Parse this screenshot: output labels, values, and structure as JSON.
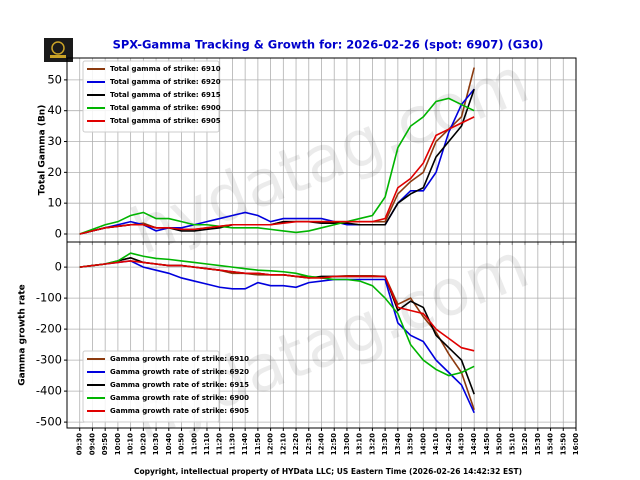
{
  "title": "SPX-Gamma Tracking & Growth for: 2026-02-26 (spot: 6907) (G30)",
  "footer": "Copyright, intellectual property of HYData LLC; US Eastern Time (2026-02-26 14:42:32 EST)",
  "watermark": "hydatag.com",
  "shared_x": {
    "x": [
      "09:30",
      "09:40",
      "09:50",
      "10:00",
      "10:10",
      "10:20",
      "10:30",
      "10:40",
      "10:50",
      "11:00",
      "11:10",
      "11:20",
      "11:30",
      "11:40",
      "11:50",
      "12:00",
      "12:10",
      "12:20",
      "12:30",
      "12:40",
      "12:50",
      "13:00",
      "13:10",
      "13:20",
      "13:30",
      "13:40",
      "13:50",
      "14:00",
      "14:10",
      "14:20",
      "14:30",
      "14:40"
    ],
    "xlim": [
      "09:20",
      "16:00"
    ],
    "xticks": [
      "09:30",
      "09:40",
      "09:50",
      "10:00",
      "10:10",
      "10:20",
      "10:30",
      "10:40",
      "10:50",
      "11:00",
      "11:10",
      "11:20",
      "11:30",
      "11:40",
      "11:50",
      "12:00",
      "12:10",
      "12:20",
      "12:30",
      "12:40",
      "12:50",
      "13:00",
      "13:10",
      "13:20",
      "13:30",
      "13:40",
      "13:50",
      "14:00",
      "14:10",
      "14:20",
      "14:30",
      "14:40",
      "14:50",
      "15:00",
      "15:10",
      "15:20",
      "15:30",
      "15:40",
      "15:50",
      "16:00"
    ]
  },
  "chart_data": [
    {
      "type": "line",
      "y_label": "Total Gamma (Bn)",
      "ylim": [
        -2.6,
        57.1
      ],
      "yticks": [
        0,
        10,
        20,
        30,
        40,
        50
      ],
      "grid": true,
      "legend": "upper left",
      "series": [
        {
          "name": "Total gamma of strike: 6910",
          "color": "#8b3a0f",
          "values": [
            0,
            1,
            2,
            2.5,
            3,
            3.5,
            2,
            2,
            1.5,
            1.5,
            2,
            2.5,
            3,
            3,
            3,
            3,
            4,
            4,
            4,
            4,
            4,
            4,
            4,
            4,
            4,
            13,
            17,
            20,
            30,
            34,
            38,
            54
          ]
        },
        {
          "name": "Total gamma of strike: 6920",
          "color": "#0000dd",
          "values": [
            0,
            1,
            2,
            3,
            4,
            3,
            1,
            2,
            2,
            3,
            4,
            5,
            6,
            7,
            6,
            4,
            5,
            5,
            5,
            5,
            4,
            3,
            3,
            3,
            3,
            10,
            14,
            14,
            20,
            33,
            42,
            47
          ]
        },
        {
          "name": "Total gamma of strike: 6915",
          "color": "#000000",
          "values": [
            0,
            1,
            2,
            2.5,
            3,
            3,
            2,
            2,
            1,
            1,
            1.5,
            2,
            3,
            3,
            3,
            3,
            4,
            4,
            4,
            3.5,
            3.5,
            3.5,
            3,
            3,
            3,
            10,
            13,
            15,
            25,
            30,
            35,
            47
          ]
        },
        {
          "name": "Total gamma of strike: 6900",
          "color": "#00b400",
          "values": [
            0,
            1.5,
            3,
            4,
            6,
            7,
            5,
            5,
            4,
            3,
            3,
            2.5,
            2,
            2,
            2,
            1.5,
            1,
            0.5,
            1,
            2,
            3,
            4,
            5,
            6,
            12,
            28,
            35,
            38,
            43,
            44,
            42,
            40
          ]
        },
        {
          "name": "Total gamma of strike: 6905",
          "color": "#e00000",
          "values": [
            0,
            1,
            2,
            2.5,
            3,
            3,
            2,
            2,
            1.5,
            1.5,
            2,
            2.5,
            3,
            3,
            3,
            3,
            3.5,
            4,
            4,
            4,
            4,
            4,
            4,
            4,
            5,
            15,
            18,
            23,
            32,
            34,
            36,
            38
          ]
        }
      ]
    },
    {
      "type": "line",
      "y_label": "Gamma growth rate",
      "ylim": [
        -519,
        81
      ],
      "yticks": [
        -500,
        -400,
        -300,
        -200,
        -100,
        0
      ],
      "grid": true,
      "legend": "lower left",
      "series": [
        {
          "name": "Gamma growth rate of strike: 6910",
          "color": "#8b3a0f",
          "values": [
            0,
            5,
            10,
            20,
            30,
            15,
            10,
            5,
            5,
            0,
            -5,
            -10,
            -20,
            -20,
            -25,
            -25,
            -25,
            -30,
            -30,
            -35,
            -30,
            -28,
            -28,
            -28,
            -30,
            -120,
            -100,
            -160,
            -210,
            -280,
            -340,
            -460
          ]
        },
        {
          "name": "Gamma growth rate of strike: 6920",
          "color": "#0000dd",
          "values": [
            0,
            5,
            10,
            15,
            20,
            0,
            -10,
            -20,
            -35,
            -45,
            -55,
            -65,
            -70,
            -70,
            -50,
            -60,
            -60,
            -65,
            -50,
            -45,
            -40,
            -40,
            -40,
            -40,
            -40,
            -180,
            -220,
            -240,
            -300,
            -340,
            -380,
            -470
          ]
        },
        {
          "name": "Gamma growth rate of strike: 6915",
          "color": "#000000",
          "values": [
            0,
            5,
            10,
            20,
            30,
            15,
            10,
            5,
            5,
            0,
            -5,
            -10,
            -15,
            -20,
            -20,
            -25,
            -25,
            -30,
            -35,
            -30,
            -30,
            -30,
            -30,
            -30,
            -30,
            -140,
            -110,
            -130,
            -220,
            -260,
            -300,
            -410
          ]
        },
        {
          "name": "Gamma growth rate of strike: 6900",
          "color": "#00b400",
          "values": [
            0,
            5,
            10,
            20,
            45,
            35,
            28,
            25,
            20,
            15,
            10,
            5,
            0,
            -5,
            -10,
            -12,
            -15,
            -20,
            -30,
            -35,
            -40,
            -40,
            -45,
            -60,
            -100,
            -150,
            -250,
            -300,
            -330,
            -350,
            -340,
            -320
          ]
        },
        {
          "name": "Gamma growth rate of strike: 6905",
          "color": "#e00000",
          "values": [
            0,
            5,
            10,
            15,
            20,
            15,
            10,
            5,
            5,
            0,
            -5,
            -10,
            -15,
            -20,
            -20,
            -25,
            -25,
            -30,
            -35,
            -35,
            -30,
            -30,
            -30,
            -30,
            -30,
            -130,
            -140,
            -150,
            -200,
            -230,
            -260,
            -270
          ]
        }
      ]
    }
  ]
}
